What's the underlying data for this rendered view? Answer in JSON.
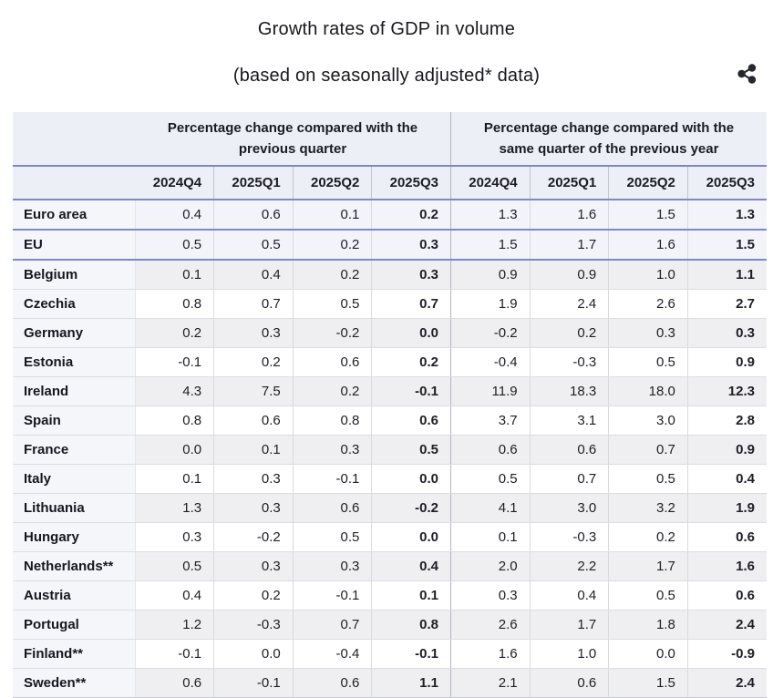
{
  "header": {
    "title": "Growth rates of GDP in volume",
    "subtitle": "(based on seasonally adjusted* data)",
    "share_icon": "share-icon"
  },
  "colors": {
    "accent_border": "#7f87c9",
    "header_background": "#edeff7",
    "name_column_background": "#f5f6fa",
    "aggregate_row_background": "#f3f4f9",
    "stripe_row_background": "#efeff1",
    "text": "#1e1e27"
  },
  "chart_data": {
    "type": "table",
    "title": "Growth rates of GDP in volume (based on seasonally adjusted* data)",
    "column_groups": [
      {
        "label_line1": "Percentage change compared with the",
        "label_line2": "previous quarter",
        "columns": [
          "2024Q4",
          "2025Q1",
          "2025Q2",
          "2025Q3"
        ]
      },
      {
        "label_line1": "Percentage change compared with the",
        "label_line2": "same quarter of the previous year",
        "columns": [
          "2024Q4",
          "2025Q1",
          "2025Q2",
          "2025Q3"
        ]
      }
    ],
    "rows": [
      {
        "name": "Euro area",
        "kind": "aggregate",
        "qoq": [
          "0.4",
          "0.6",
          "0.1",
          "0.2"
        ],
        "yoy": [
          "1.3",
          "1.6",
          "1.5",
          "1.3"
        ]
      },
      {
        "name": "EU",
        "kind": "aggregate",
        "qoq": [
          "0.5",
          "0.5",
          "0.2",
          "0.3"
        ],
        "yoy": [
          "1.5",
          "1.7",
          "1.6",
          "1.5"
        ]
      },
      {
        "name": "Belgium",
        "kind": "country",
        "qoq": [
          "0.1",
          "0.4",
          "0.2",
          "0.3"
        ],
        "yoy": [
          "0.9",
          "0.9",
          "1.0",
          "1.1"
        ]
      },
      {
        "name": "Czechia",
        "kind": "country",
        "qoq": [
          "0.8",
          "0.7",
          "0.5",
          "0.7"
        ],
        "yoy": [
          "1.9",
          "2.4",
          "2.6",
          "2.7"
        ]
      },
      {
        "name": "Germany",
        "kind": "country",
        "qoq": [
          "0.2",
          "0.3",
          "-0.2",
          "0.0"
        ],
        "yoy": [
          "-0.2",
          "0.2",
          "0.3",
          "0.3"
        ]
      },
      {
        "name": "Estonia",
        "kind": "country",
        "qoq": [
          "-0.1",
          "0.2",
          "0.6",
          "0.2"
        ],
        "yoy": [
          "-0.4",
          "-0.3",
          "0.5",
          "0.9"
        ]
      },
      {
        "name": "Ireland",
        "kind": "country",
        "qoq": [
          "4.3",
          "7.5",
          "0.2",
          "-0.1"
        ],
        "yoy": [
          "11.9",
          "18.3",
          "18.0",
          "12.3"
        ]
      },
      {
        "name": "Spain",
        "kind": "country",
        "qoq": [
          "0.8",
          "0.6",
          "0.8",
          "0.6"
        ],
        "yoy": [
          "3.7",
          "3.1",
          "3.0",
          "2.8"
        ]
      },
      {
        "name": "France",
        "kind": "country",
        "qoq": [
          "0.0",
          "0.1",
          "0.3",
          "0.5"
        ],
        "yoy": [
          "0.6",
          "0.6",
          "0.7",
          "0.9"
        ]
      },
      {
        "name": "Italy",
        "kind": "country",
        "qoq": [
          "0.1",
          "0.3",
          "-0.1",
          "0.0"
        ],
        "yoy": [
          "0.5",
          "0.7",
          "0.5",
          "0.4"
        ]
      },
      {
        "name": "Lithuania",
        "kind": "country",
        "qoq": [
          "1.3",
          "0.3",
          "0.6",
          "-0.2"
        ],
        "yoy": [
          "4.1",
          "3.0",
          "3.2",
          "1.9"
        ]
      },
      {
        "name": "Hungary",
        "kind": "country",
        "qoq": [
          "0.3",
          "-0.2",
          "0.5",
          "0.0"
        ],
        "yoy": [
          "0.1",
          "-0.3",
          "0.2",
          "0.6"
        ]
      },
      {
        "name": "Netherlands**",
        "kind": "country",
        "qoq": [
          "0.5",
          "0.3",
          "0.3",
          "0.4"
        ],
        "yoy": [
          "2.0",
          "2.2",
          "1.7",
          "1.6"
        ]
      },
      {
        "name": "Austria",
        "kind": "country",
        "qoq": [
          "0.4",
          "0.2",
          "-0.1",
          "0.1"
        ],
        "yoy": [
          "0.3",
          "0.4",
          "0.5",
          "0.6"
        ]
      },
      {
        "name": "Portugal",
        "kind": "country",
        "qoq": [
          "1.2",
          "-0.3",
          "0.7",
          "0.8"
        ],
        "yoy": [
          "2.6",
          "1.7",
          "1.8",
          "2.4"
        ]
      },
      {
        "name": "Finland**",
        "kind": "country",
        "qoq": [
          "-0.1",
          "0.0",
          "-0.4",
          "-0.1"
        ],
        "yoy": [
          "1.6",
          "1.0",
          "0.0",
          "-0.9"
        ]
      },
      {
        "name": "Sweden**",
        "kind": "country",
        "qoq": [
          "0.6",
          "-0.1",
          "0.6",
          "1.1"
        ],
        "yoy": [
          "2.1",
          "0.6",
          "1.5",
          "2.4"
        ]
      }
    ]
  }
}
